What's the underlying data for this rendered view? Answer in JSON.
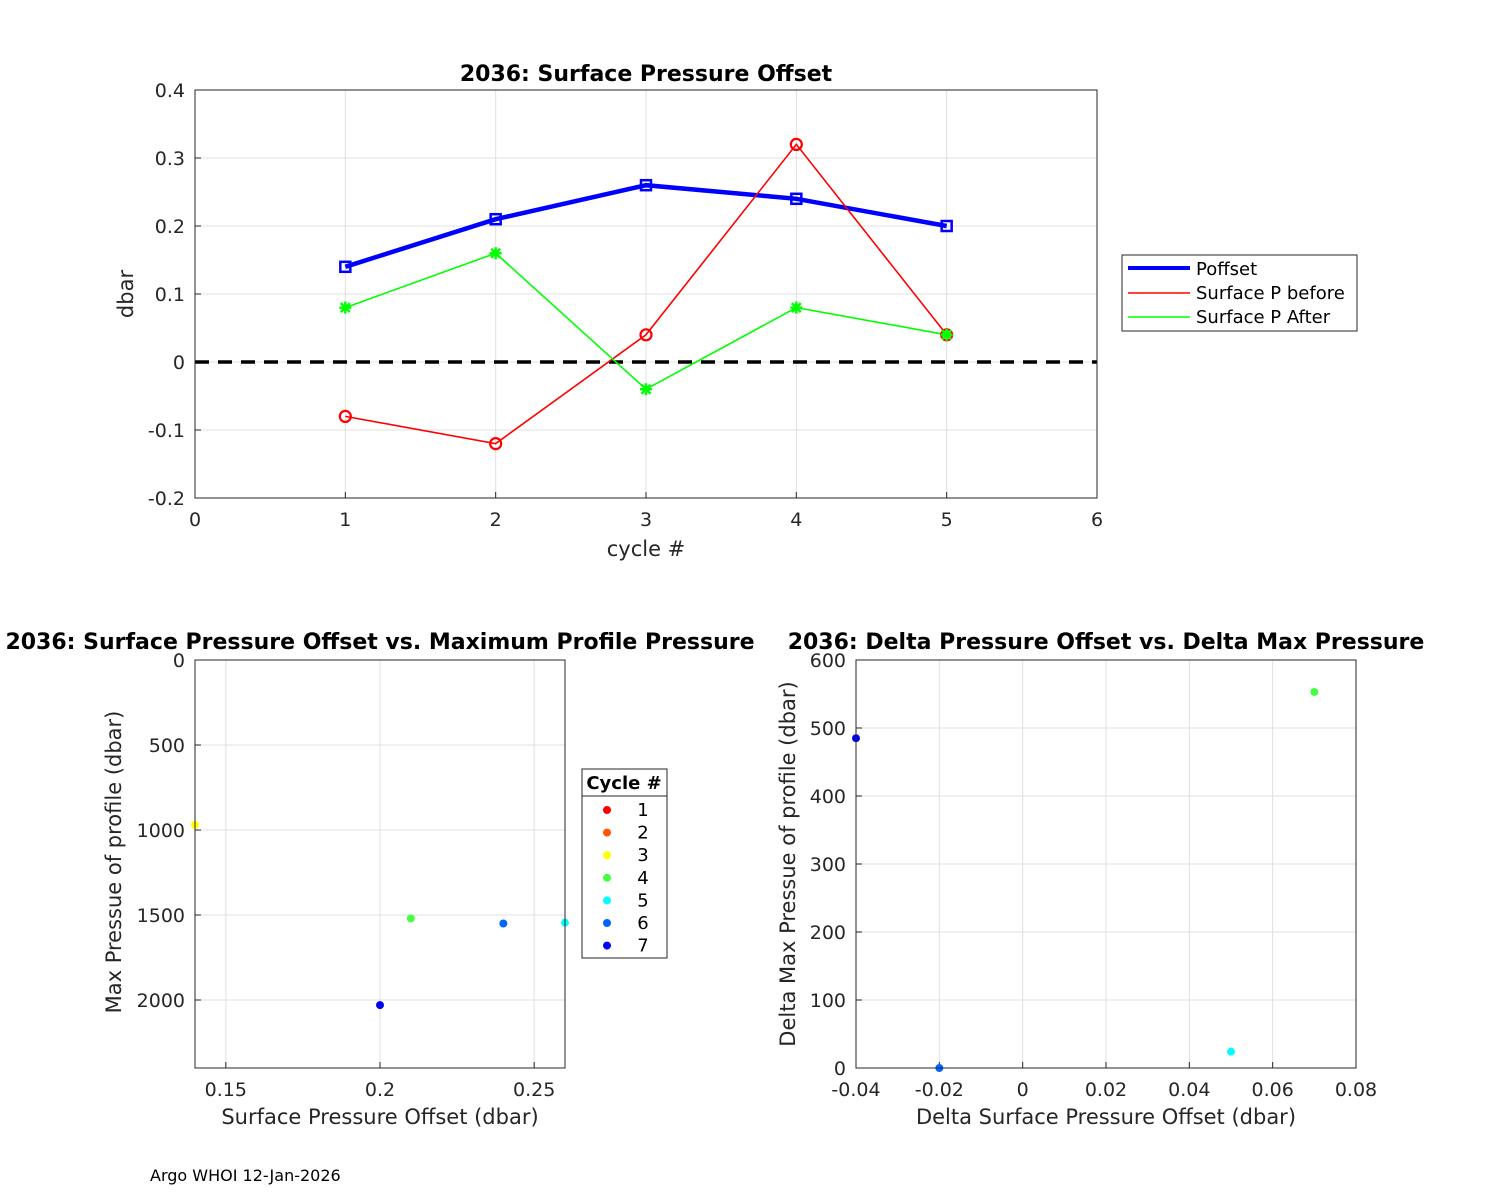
{
  "footer": "Argo WHOI 12-Jan-2026",
  "chart_data": [
    {
      "type": "line",
      "title": "2036: Surface Pressure Offset",
      "xlabel": "cycle #",
      "ylabel": "dbar",
      "xlim": [
        0,
        6
      ],
      "ylim": [
        -0.2,
        0.4
      ],
      "xticks": [
        "0",
        "1",
        "2",
        "3",
        "4",
        "5",
        "6"
      ],
      "yticks": [
        "-0.2",
        "-0.1",
        "0",
        "0.1",
        "0.2",
        "0.3",
        "0.4"
      ],
      "grid": true,
      "legend_position": "outside-right",
      "x": [
        1,
        2,
        3,
        4,
        5
      ],
      "series": [
        {
          "name": "Poffset",
          "color": "#0000ff",
          "marker": "square",
          "values": [
            0.14,
            0.21,
            0.26,
            0.24,
            0.2
          ]
        },
        {
          "name": "Surface P before",
          "color": "#ff0000",
          "marker": "circle",
          "values": [
            -0.08,
            -0.12,
            0.04,
            0.32,
            0.04
          ]
        },
        {
          "name": "Surface P After",
          "color": "#00ff00",
          "marker": "star",
          "values": [
            0.08,
            0.16,
            -0.04,
            0.08,
            0.04
          ]
        }
      ],
      "reference_line": {
        "y": 0,
        "color": "#000000",
        "style": "dashed"
      }
    },
    {
      "type": "scatter",
      "title": "2036: Surface Pressure Offset vs. Maximum Profile Pressure",
      "xlabel": "Surface Pressure Offset (dbar)",
      "ylabel": "Max Pressue of profile (dbar)",
      "xlim": [
        0.14,
        0.26
      ],
      "ylim": [
        0,
        2400
      ],
      "y_reversed": true,
      "xticks": [
        "0.15",
        "0.2",
        "0.25"
      ],
      "yticks": [
        "0",
        "500",
        "1000",
        "1500",
        "2000"
      ],
      "grid": true,
      "legend_title": "Cycle #",
      "legend_position": "outside-right",
      "legend": [
        {
          "label": "1",
          "color": "#ff0000"
        },
        {
          "label": "2",
          "color": "#ff5500"
        },
        {
          "label": "3",
          "color": "#ffff00"
        },
        {
          "label": "4",
          "color": "#44ff44"
        },
        {
          "label": "5",
          "color": "#00ffff"
        },
        {
          "label": "6",
          "color": "#0066ff"
        },
        {
          "label": "7",
          "color": "#0000ff"
        }
      ],
      "points": [
        {
          "x": 0.14,
          "y": 970,
          "color": "#ffff00"
        },
        {
          "x": 0.21,
          "y": 1520,
          "color": "#44ff44"
        },
        {
          "x": 0.2,
          "y": 2030,
          "color": "#0000ff"
        },
        {
          "x": 0.24,
          "y": 1550,
          "color": "#0066ff"
        },
        {
          "x": 0.26,
          "y": 1545,
          "color": "#00ffff"
        }
      ]
    },
    {
      "type": "scatter",
      "title": "2036: Delta Pressure Offset vs. Delta Max Pressure",
      "xlabel": "Delta Surface Pressure Offset (dbar)",
      "ylabel": "Delta Max Pressue of profile (dbar)",
      "xlim": [
        -0.04,
        0.08
      ],
      "ylim": [
        0,
        600
      ],
      "xticks": [
        "-0.04",
        "-0.02",
        "0",
        "0.02",
        "0.04",
        "0.06",
        "0.08"
      ],
      "yticks": [
        "0",
        "100",
        "200",
        "300",
        "400",
        "500",
        "600"
      ],
      "grid": true,
      "points": [
        {
          "x": -0.04,
          "y": 485,
          "color": "#0000ff"
        },
        {
          "x": -0.02,
          "y": 0,
          "color": "#0066ff"
        },
        {
          "x": 0.05,
          "y": 24,
          "color": "#00ffff"
        },
        {
          "x": 0.07,
          "y": 553,
          "color": "#44ff44"
        }
      ]
    }
  ]
}
